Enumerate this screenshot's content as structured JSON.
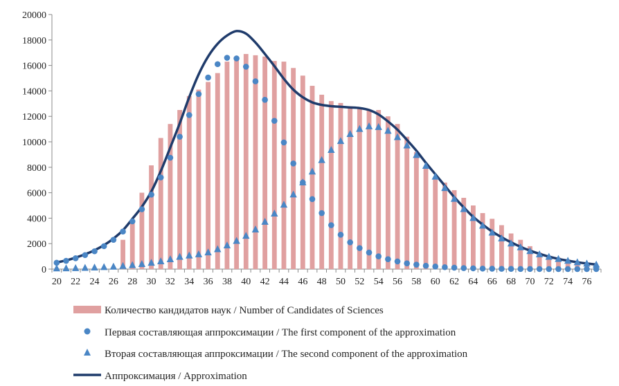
{
  "chart_data": {
    "type": "bar",
    "title": "",
    "xlabel": "",
    "ylabel": "",
    "x": [
      20,
      21,
      22,
      23,
      24,
      25,
      26,
      27,
      28,
      29,
      30,
      31,
      32,
      33,
      34,
      35,
      36,
      37,
      38,
      39,
      40,
      41,
      42,
      43,
      44,
      45,
      46,
      47,
      48,
      49,
      50,
      51,
      52,
      53,
      54,
      55,
      56,
      57,
      58,
      59,
      60,
      61,
      62,
      63,
      64,
      65,
      66,
      67,
      68,
      69,
      70,
      71,
      72,
      73,
      74,
      75,
      76,
      77
    ],
    "x_tick_labels": [
      "20",
      "22",
      "24",
      "26",
      "28",
      "30",
      "32",
      "34",
      "36",
      "38",
      "40",
      "42",
      "44",
      "46",
      "48",
      "50",
      "52",
      "54",
      "56",
      "58",
      "60",
      "62",
      "64",
      "66",
      "68",
      "70",
      "72",
      "74",
      "76"
    ],
    "ylim": [
      0,
      20000
    ],
    "y_ticks": [
      "0",
      "2000",
      "4000",
      "6000",
      "8000",
      "10000",
      "12000",
      "14000",
      "16000",
      "18000",
      "20000"
    ],
    "grid": false,
    "legend_position": "bottom",
    "colors": {
      "bars": "#e0a0a0",
      "points": "#4a86c5",
      "line": "#1f3b6b",
      "axis": "#888888"
    },
    "series": [
      {
        "name": "Количество кандидатов наук / Number of Candidates of Sciences",
        "kind": "bar",
        "values": [
          0,
          0,
          0,
          0,
          0,
          0,
          0,
          2300,
          3700,
          6000,
          8150,
          10300,
          11400,
          12500,
          13600,
          14100,
          14700,
          15400,
          16300,
          16700,
          16900,
          16800,
          16700,
          16350,
          16300,
          15800,
          15200,
          14400,
          13700,
          13200,
          13050,
          12800,
          12650,
          12500,
          12500,
          12000,
          11400,
          10400,
          9200,
          8000,
          7100,
          6800,
          6200,
          5600,
          5000,
          4400,
          3950,
          3450,
          2800,
          2300,
          1800,
          1300,
          1050,
          900,
          750,
          550,
          450,
          300
        ]
      },
      {
        "name": "Первая составляющая аппроксимации / The first component of the approximation",
        "kind": "scatter-circle",
        "values": [
          500,
          650,
          850,
          1100,
          1400,
          1800,
          2300,
          2950,
          3750,
          4700,
          5850,
          7200,
          8750,
          10400,
          12100,
          13750,
          15050,
          16100,
          16600,
          16550,
          15900,
          14750,
          13300,
          11650,
          9950,
          8300,
          6800,
          5500,
          4400,
          3450,
          2700,
          2100,
          1650,
          1300,
          1000,
          780,
          600,
          450,
          350,
          260,
          200,
          150,
          110,
          80,
          60,
          40,
          30,
          20,
          15,
          10,
          8,
          6,
          4,
          3,
          2,
          2,
          1,
          1
        ]
      },
      {
        "name": "Вторая составляющая аппроксимации / The second component of the approximation",
        "kind": "scatter-triangle",
        "values": [
          40,
          50,
          60,
          80,
          110,
          140,
          180,
          230,
          300,
          380,
          480,
          600,
          760,
          950,
          1050,
          1150,
          1300,
          1550,
          1850,
          2200,
          2600,
          3100,
          3700,
          4350,
          5050,
          5850,
          6800,
          7650,
          8550,
          9350,
          10050,
          10600,
          11000,
          11200,
          11150,
          10850,
          10350,
          9700,
          8950,
          8100,
          7250,
          6350,
          5500,
          4700,
          4000,
          3400,
          2850,
          2400,
          2000,
          1700,
          1400,
          1150,
          950,
          780,
          640,
          520,
          420,
          340
        ]
      },
      {
        "name": "Аппроксимация / Approximation",
        "kind": "line",
        "values": [
          520,
          680,
          900,
          1160,
          1480,
          1880,
          2400,
          3050,
          3950,
          4900,
          6100,
          7700,
          9550,
          11450,
          13500,
          15300,
          16700,
          17700,
          18350,
          18700,
          18500,
          17800,
          16900,
          15950,
          14950,
          14100,
          13500,
          13100,
          12900,
          12800,
          12750,
          12700,
          12650,
          12500,
          12150,
          11600,
          10950,
          10150,
          9300,
          8350,
          7450,
          6550,
          5650,
          4850,
          4100,
          3500,
          2950,
          2500,
          2100,
          1750,
          1450,
          1200,
          980,
          800,
          660,
          540,
          440,
          360
        ]
      }
    ]
  }
}
